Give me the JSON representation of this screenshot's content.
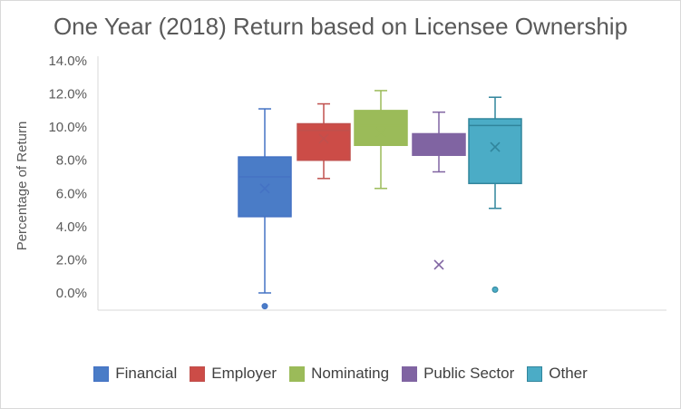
{
  "chart_data": {
    "type": "box",
    "title": "One Year (2018) Return based on Licensee Ownership",
    "ylabel": "Percentage of Return",
    "xlabel": "",
    "ylim": [
      0,
      14
    ],
    "yticks": [
      "0.0%",
      "2.0%",
      "4.0%",
      "6.0%",
      "8.0%",
      "10.0%",
      "12.0%",
      "14.0%"
    ],
    "legend_position": "bottom",
    "series": [
      {
        "name": "Financial",
        "color": "#4472c4",
        "fill": "#4a7cc7",
        "whisker_low": 0.0,
        "q1": 4.6,
        "median": 7.0,
        "q3": 8.2,
        "whisker_high": 11.1,
        "mean": 6.3,
        "outliers": [
          -0.8
        ]
      },
      {
        "name": "Employer",
        "color": "#c0504d",
        "fill": "#cc4c47",
        "whisker_low": 6.9,
        "q1": 8.0,
        "median": 9.8,
        "q3": 10.2,
        "whisker_high": 11.4,
        "mean": 9.3,
        "outliers": []
      },
      {
        "name": "Nominating",
        "color": "#9bbb59",
        "fill": "#9bbb59",
        "whisker_low": 6.3,
        "q1": 8.9,
        "median": 10.1,
        "q3": 11.0,
        "whisker_high": 12.2,
        "mean": 9.7,
        "outliers": []
      },
      {
        "name": "Public Sector",
        "color": "#8064a2",
        "fill": "#8064a2",
        "whisker_low": 7.3,
        "q1": 8.3,
        "median": 8.9,
        "q3": 9.6,
        "whisker_high": 10.9,
        "mean": 1.7,
        "outliers": []
      },
      {
        "name": "Other",
        "color": "#31859c",
        "fill": "#4bacc6",
        "whisker_low": 5.1,
        "q1": 6.6,
        "median": 10.1,
        "q3": 10.5,
        "whisker_high": 11.8,
        "mean": 8.8,
        "outliers": [
          0.2
        ]
      }
    ]
  }
}
